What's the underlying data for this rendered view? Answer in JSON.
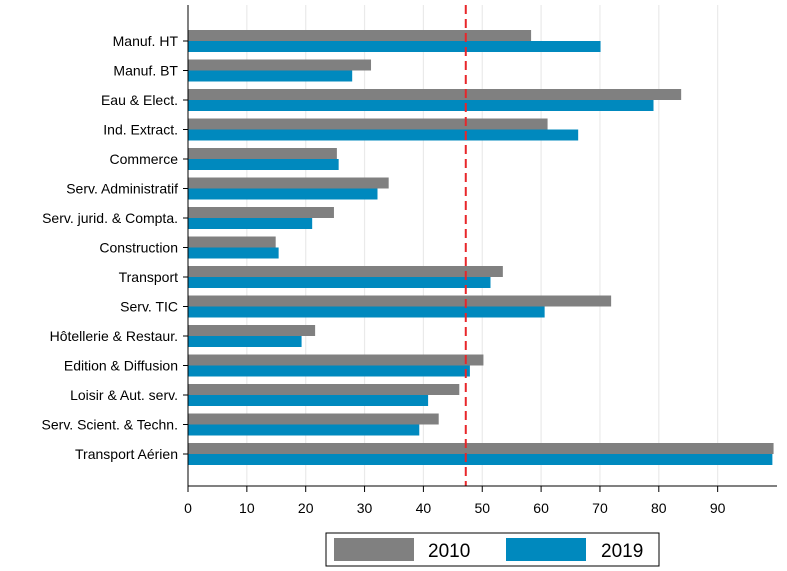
{
  "chart_data": {
    "type": "bar",
    "orientation": "horizontal",
    "categories": [
      "Manuf. HT",
      "Manuf. BT",
      "Eau & Elect.",
      "Ind. Extract.",
      "Commerce",
      "Serv. Administratif",
      "Serv. jurid. & Compta.",
      "Construction",
      "Transport",
      "Serv. TIC",
      "Hôtellerie & Restaur.",
      "Edition & Diffusion",
      "Loisir & Aut. serv.",
      "Serv. Scient. & Techn.",
      "Transport Aérien"
    ],
    "series": [
      {
        "name": "2010",
        "color": "#808080",
        "values": [
          58.3,
          31.1,
          83.8,
          61.1,
          25.3,
          34.1,
          24.8,
          14.9,
          53.5,
          71.9,
          21.6,
          50.2,
          46.1,
          42.6,
          99.5
        ]
      },
      {
        "name": "2019",
        "color": "#0089be",
        "values": [
          70.1,
          27.9,
          79.1,
          66.3,
          25.6,
          32.2,
          21.1,
          15.4,
          51.4,
          60.6,
          19.3,
          47.9,
          40.8,
          39.3,
          99.3
        ]
      }
    ],
    "reference_line": {
      "value": 47.2,
      "color": "#e8262a",
      "style": "dashed"
    },
    "xlim": [
      0,
      100
    ],
    "xticks": [
      0,
      10,
      20,
      30,
      40,
      50,
      60,
      70,
      80,
      90
    ],
    "xgrid": true,
    "legend": {
      "position": "bottom",
      "entries": [
        "2010",
        "2019"
      ]
    }
  }
}
